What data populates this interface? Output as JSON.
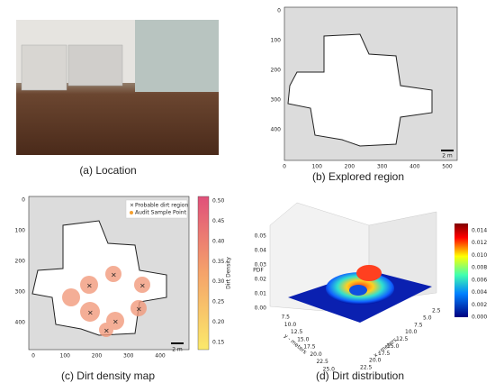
{
  "panels": [
    {
      "caption": "(a) Location"
    },
    {
      "caption": "(b) Explored region",
      "xticks": [
        "0",
        "100",
        "200",
        "300",
        "400",
        "500"
      ],
      "yticks": [
        "0",
        "100",
        "200",
        "300",
        "400"
      ],
      "scale_bar": "2 m"
    },
    {
      "caption": "(c) Dirt density map",
      "xticks": [
        "0",
        "100",
        "200",
        "300",
        "400"
      ],
      "yticks": [
        "0",
        "100",
        "200",
        "300",
        "400"
      ],
      "scale_bar": "2 m",
      "legend": [
        "Probable dirt region",
        "Audit Sample Point"
      ],
      "colorbar_label": "Dirt Density",
      "colorbar_ticks": [
        "0.50",
        "0.45",
        "0.40",
        "0.35",
        "0.30",
        "0.25",
        "0.20",
        "0.15"
      ]
    },
    {
      "caption": "(d) Dirt distribution",
      "z_label": "PDF",
      "z_ticks": [
        "0.00",
        "0.01",
        "0.02",
        "0.03",
        "0.04",
        "0.05"
      ],
      "x_label": "x - meters",
      "x_ticks": [
        "2.5",
        "5.0",
        "7.5",
        "10.0",
        "12.5",
        "15.0",
        "17.5",
        "20.0",
        "22.5"
      ],
      "y_label": "y - meters",
      "y_ticks": [
        "7.5",
        "10.0",
        "12.5",
        "15.0",
        "17.5",
        "20.0",
        "22.5",
        "25.0"
      ],
      "colorbar_ticks": [
        "0.014",
        "0.012",
        "0.010",
        "0.008",
        "0.006",
        "0.004",
        "0.002",
        "0.000"
      ]
    }
  ]
}
